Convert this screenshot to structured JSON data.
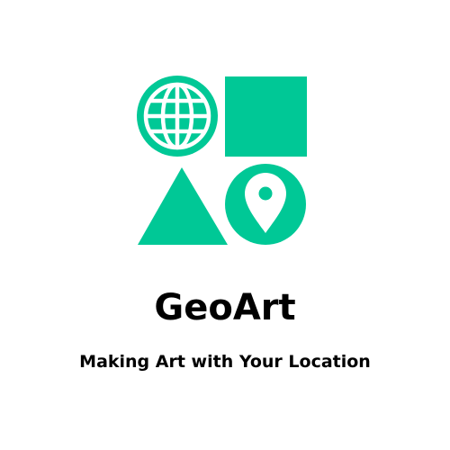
{
  "brand": {
    "name": "GeoArt",
    "tagline": "Making Art with Your Location",
    "accent_color": "#00c896",
    "text_color": "#000000",
    "background_color": "#ffffff"
  },
  "logo": {
    "icons": [
      "globe-icon",
      "square-shape",
      "triangle-shape",
      "location-pin-icon"
    ]
  }
}
